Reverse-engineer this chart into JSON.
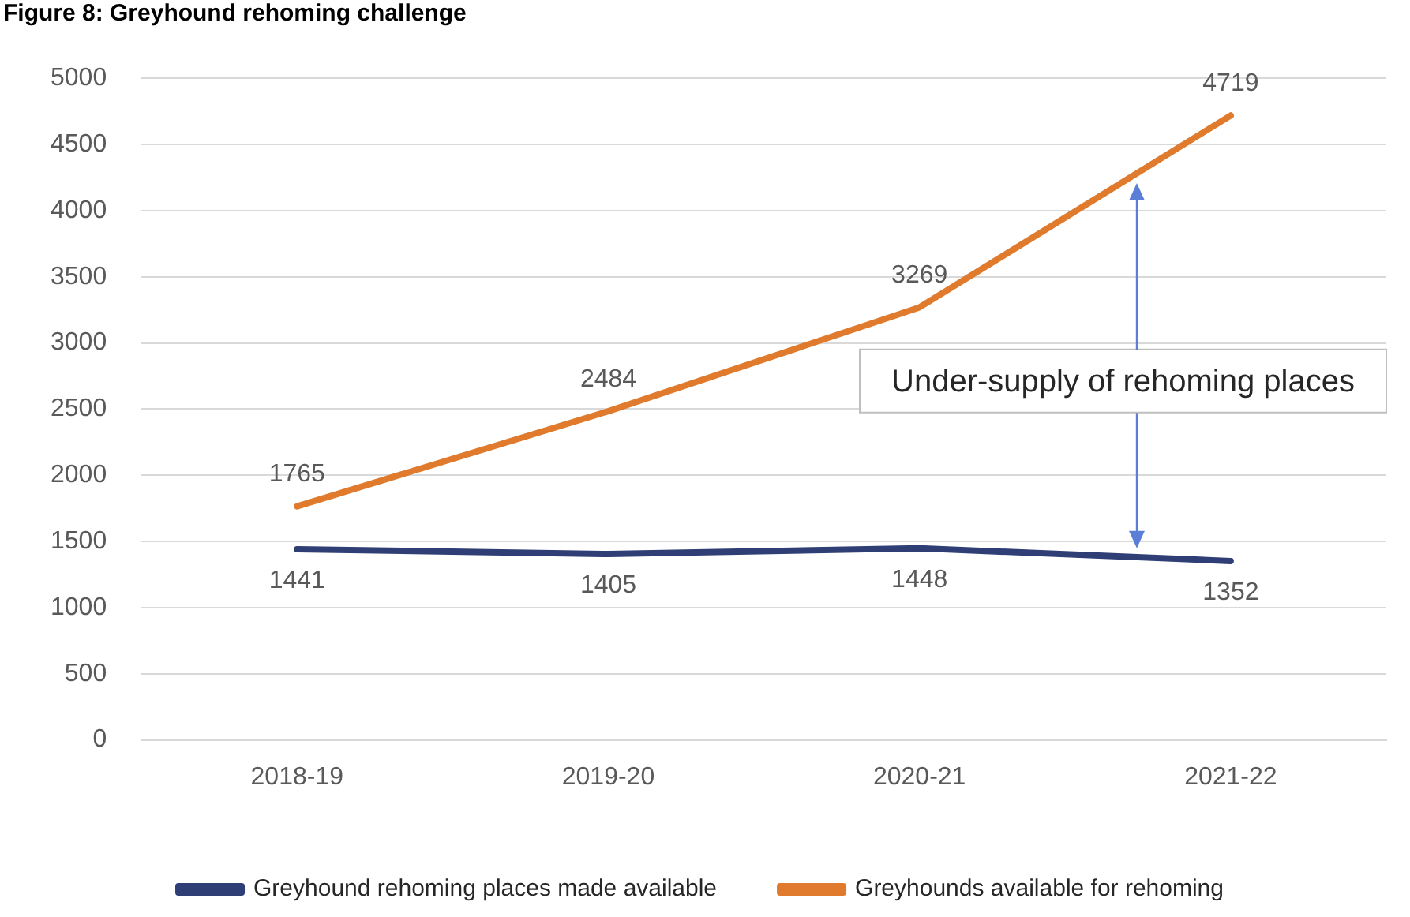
{
  "chart_data": {
    "type": "line",
    "title": "Figure 8: Greyhound rehoming challenge",
    "categories": [
      "2018-19",
      "2019-20",
      "2020-21",
      "2021-22"
    ],
    "series": [
      {
        "name": "Greyhound rehoming places made available",
        "color": "#2f3f75",
        "values": [
          1441,
          1405,
          1448,
          1352
        ]
      },
      {
        "name": "Greyhounds available for rehoming",
        "color": "#e07b2e",
        "values": [
          1765,
          2484,
          3269,
          4719
        ]
      }
    ],
    "ylim": [
      0,
      5000
    ],
    "yticks": [
      0,
      500,
      1000,
      1500,
      2000,
      2500,
      3000,
      3500,
      4000,
      4500,
      5000
    ],
    "grid": "y",
    "legend": "bottom",
    "data_labels": true,
    "marker": "none",
    "annotations": [
      "Under-supply of rehoming places"
    ]
  }
}
